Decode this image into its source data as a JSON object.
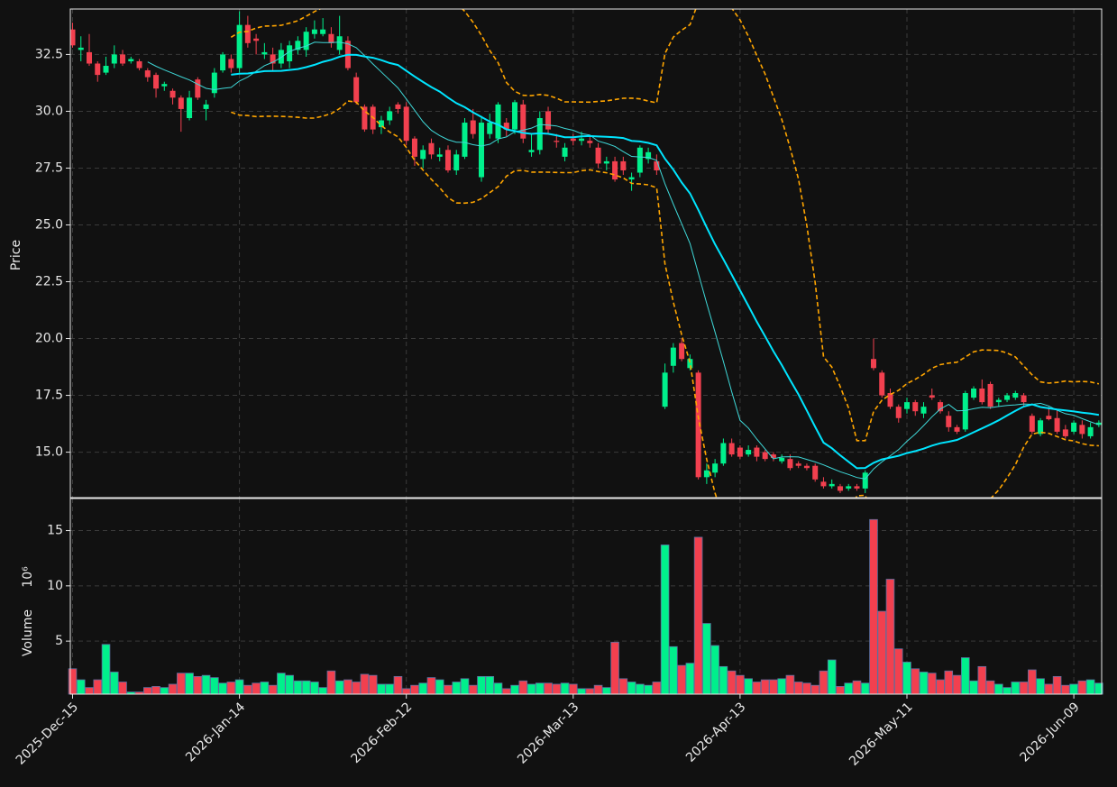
{
  "chart_data": {
    "type": "candlestick",
    "categories": [
      "2025-Dec-15",
      null,
      null,
      null,
      null,
      null,
      null,
      null,
      null,
      null,
      null,
      null,
      null,
      null,
      null,
      null,
      null,
      null,
      null,
      null,
      "2026-Jan-14",
      null,
      null,
      null,
      null,
      null,
      null,
      null,
      null,
      null,
      null,
      null,
      null,
      null,
      null,
      null,
      null,
      null,
      null,
      null,
      "2026-Feb-12",
      null,
      null,
      null,
      null,
      null,
      null,
      null,
      null,
      null,
      null,
      null,
      null,
      null,
      null,
      null,
      null,
      null,
      null,
      null,
      "2026-Mar-13",
      null,
      null,
      null,
      null,
      null,
      null,
      null,
      null,
      null,
      null,
      null,
      null,
      null,
      null,
      null,
      null,
      null,
      null,
      null,
      "2026-Apr-13",
      null,
      null,
      null,
      null,
      null,
      null,
      null,
      null,
      null,
      null,
      null,
      null,
      null,
      null,
      null,
      null,
      null,
      null,
      null,
      "2026-May-11",
      null,
      null,
      null,
      null,
      null,
      null,
      null,
      null,
      null,
      null,
      null,
      null,
      null,
      null,
      null,
      null,
      null,
      null,
      null,
      "2026-Jun-09",
      null,
      null,
      null
    ],
    "open": [
      33.6,
      32.7,
      32.6,
      32.1,
      31.7,
      32.1,
      32.5,
      32.2,
      32.2,
      31.8,
      31.6,
      31.1,
      30.9,
      30.6,
      29.7,
      31.4,
      30.1,
      30.8,
      31.8,
      32.3,
      31.9,
      33.8,
      33.2,
      32.5,
      32.5,
      32.1,
      32.2,
      32.7,
      32.7,
      33.4,
      33.4,
      33.4,
      32.7,
      33.1,
      31.5,
      30.2,
      30.2,
      29.3,
      29.6,
      30.3,
      30.2,
      28.8,
      27.9,
      28.6,
      28.0,
      28.3,
      27.4,
      28.0,
      29.6,
      27.1,
      29.0,
      28.8,
      29.5,
      29.2,
      30.3,
      28.2,
      28.3,
      30.0,
      28.7,
      28.0,
      28.8,
      28.7,
      28.7,
      28.4,
      27.7,
      27.8,
      27.8,
      27.0,
      27.3,
      27.9,
      27.8,
      17.0,
      18.8,
      19.8,
      18.7,
      18.5,
      13.9,
      14.1,
      14.5,
      15.4,
      15.2,
      14.9,
      15.2,
      15.0,
      14.9,
      14.6,
      14.7,
      14.5,
      14.4,
      14.4,
      13.7,
      13.5,
      13.5,
      13.4,
      13.5,
      13.4,
      19.1,
      18.5,
      17.6,
      17.0,
      16.9,
      17.2,
      16.7,
      17.5,
      17.2,
      16.6,
      16.1,
      16.0,
      17.4,
      17.8,
      18.0,
      17.2,
      17.3,
      17.4,
      17.5,
      16.6,
      15.8,
      16.6,
      16.5,
      16.0,
      15.9,
      16.2,
      15.7,
      16.2
    ],
    "high": [
      33.9,
      33.3,
      33.4,
      32.2,
      32.4,
      32.9,
      32.7,
      32.4,
      32.3,
      31.9,
      31.7,
      31.3,
      31.0,
      30.7,
      30.9,
      31.5,
      30.5,
      31.9,
      32.6,
      32.5,
      34.4,
      34.2,
      33.4,
      33.0,
      32.8,
      33.0,
      33.1,
      33.3,
      33.7,
      34.0,
      34.1,
      33.7,
      34.2,
      33.3,
      31.7,
      30.3,
      30.3,
      29.8,
      30.2,
      30.4,
      30.4,
      28.9,
      28.5,
      28.8,
      28.4,
      28.5,
      28.3,
      29.7,
      30.1,
      29.8,
      29.9,
      30.4,
      29.7,
      30.5,
      30.5,
      29.0,
      30.0,
      30.2,
      29.0,
      28.6,
      29.0,
      29.1,
      28.9,
      28.6,
      28.0,
      28.0,
      28.0,
      27.3,
      28.5,
      28.4,
      28.1,
      18.9,
      19.8,
      20.0,
      19.3,
      18.6,
      14.5,
      14.7,
      15.6,
      15.6,
      15.3,
      15.3,
      15.3,
      15.1,
      15.0,
      14.9,
      14.9,
      14.6,
      14.5,
      14.5,
      13.9,
      13.8,
      13.6,
      13.6,
      13.6,
      14.2,
      20.0,
      18.6,
      17.8,
      17.1,
      17.4,
      17.3,
      17.2,
      17.8,
      17.3,
      16.8,
      16.2,
      17.7,
      17.9,
      18.2,
      18.1,
      17.4,
      17.6,
      17.7,
      17.6,
      16.7,
      16.5,
      17.0,
      16.9,
      16.2,
      16.4,
      16.4,
      16.3,
      16.4
    ],
    "low": [
      32.8,
      32.2,
      32.0,
      31.3,
      31.6,
      31.9,
      32.0,
      32.1,
      31.8,
      31.3,
      30.6,
      30.9,
      30.3,
      29.1,
      29.6,
      30.5,
      29.6,
      30.6,
      31.7,
      31.7,
      31.7,
      32.8,
      32.5,
      32.3,
      31.8,
      31.9,
      31.9,
      32.5,
      32.4,
      33.2,
      33.3,
      32.8,
      32.5,
      31.8,
      30.3,
      29.1,
      29.0,
      29.0,
      29.4,
      29.9,
      28.5,
      27.6,
      27.5,
      27.9,
      27.8,
      27.3,
      27.2,
      27.9,
      28.8,
      26.9,
      28.8,
      28.6,
      28.9,
      29.0,
      28.6,
      28.0,
      28.1,
      29.0,
      28.4,
      27.8,
      28.5,
      28.5,
      28.4,
      27.5,
      27.4,
      26.9,
      27.2,
      26.5,
      27.1,
      27.7,
      27.2,
      16.9,
      18.5,
      19.0,
      18.6,
      13.8,
      13.6,
      13.9,
      14.4,
      14.8,
      14.7,
      14.8,
      14.6,
      14.6,
      14.6,
      14.5,
      14.2,
      14.3,
      14.2,
      13.7,
      13.4,
      13.4,
      13.2,
      13.3,
      13.3,
      13.2,
      18.6,
      17.4,
      16.9,
      16.3,
      16.7,
      16.6,
      16.5,
      17.3,
      16.7,
      15.9,
      15.8,
      15.9,
      17.3,
      17.1,
      16.9,
      17.0,
      17.2,
      17.3,
      17.0,
      15.8,
      15.7,
      16.4,
      15.8,
      15.6,
      15.8,
      15.6,
      15.6,
      16.1
    ],
    "close": [
      32.9,
      32.8,
      32.1,
      31.6,
      32.0,
      32.5,
      32.1,
      32.3,
      31.9,
      31.5,
      31.0,
      31.2,
      30.6,
      30.1,
      30.6,
      30.6,
      30.3,
      31.7,
      32.5,
      31.9,
      33.8,
      33.0,
      33.1,
      32.6,
      32.1,
      32.7,
      32.9,
      33.1,
      33.5,
      33.6,
      33.6,
      33.0,
      33.3,
      31.9,
      30.4,
      29.2,
      29.2,
      29.6,
      30.0,
      30.1,
      28.7,
      28.0,
      28.3,
      28.1,
      28.1,
      27.4,
      28.1,
      29.5,
      29.0,
      29.5,
      29.5,
      30.3,
      29.2,
      30.4,
      28.8,
      28.3,
      29.7,
      29.2,
      28.65,
      28.4,
      28.7,
      28.8,
      28.6,
      27.7,
      27.8,
      27.0,
      27.4,
      27.1,
      28.4,
      28.2,
      27.4,
      18.5,
      19.6,
      19.1,
      19.1,
      13.9,
      14.2,
      14.5,
      15.4,
      14.9,
      14.8,
      15.1,
      14.8,
      14.7,
      14.75,
      14.75,
      14.3,
      14.4,
      14.3,
      13.8,
      13.5,
      13.6,
      13.3,
      13.5,
      13.4,
      14.1,
      18.7,
      17.5,
      17.0,
      16.5,
      17.2,
      16.8,
      17.0,
      17.4,
      16.8,
      16.1,
      15.9,
      17.6,
      17.8,
      17.2,
      17.0,
      17.3,
      17.5,
      17.6,
      17.2,
      15.9,
      16.4,
      16.45,
      15.9,
      15.7,
      16.3,
      15.8,
      16.1,
      16.3
    ],
    "volume": [
      2.5,
      1.5,
      0.8,
      1.5,
      4.7,
      2.2,
      1.3,
      0.4,
      0.4,
      0.8,
      0.9,
      0.8,
      1.1,
      2.1,
      2.1,
      1.8,
      1.9,
      1.7,
      1.2,
      1.3,
      1.5,
      1.0,
      1.2,
      1.3,
      1.0,
      2.1,
      1.9,
      1.4,
      1.4,
      1.3,
      0.8,
      2.3,
      1.4,
      1.5,
      1.3,
      2.0,
      1.9,
      1.1,
      1.1,
      1.8,
      0.7,
      1.0,
      1.2,
      1.7,
      1.5,
      1.0,
      1.3,
      1.6,
      1.0,
      1.8,
      1.8,
      1.2,
      0.7,
      1.0,
      1.4,
      1.1,
      1.2,
      1.2,
      1.1,
      1.2,
      1.1,
      0.7,
      0.7,
      1.0,
      0.8,
      4.9,
      1.6,
      1.3,
      1.1,
      1.0,
      1.3,
      13.7,
      4.5,
      2.8,
      3.0,
      14.4,
      6.6,
      4.6,
      2.7,
      2.3,
      1.9,
      1.6,
      1.3,
      1.5,
      1.5,
      1.6,
      1.9,
      1.3,
      1.2,
      1.0,
      2.3,
      3.3,
      0.9,
      1.2,
      1.4,
      1.2,
      16.0,
      7.7,
      10.6,
      4.3,
      3.1,
      2.5,
      2.2,
      2.1,
      1.5,
      2.3,
      1.9,
      3.5,
      1.4,
      2.7,
      1.4,
      1.1,
      0.8,
      1.3,
      1.3,
      2.4,
      1.6,
      1.1,
      1.8,
      1.0,
      1.1,
      1.4,
      1.5,
      1.2
    ],
    "ylabel": "Price",
    "ylim": [
      13.0,
      34.5
    ],
    "yticks": [
      {
        "value": 15,
        "label": "15.0"
      },
      {
        "value": 17.5,
        "label": "17.5"
      },
      {
        "value": 20,
        "label": "20.0"
      },
      {
        "value": 22.5,
        "label": "22.5"
      },
      {
        "value": 25,
        "label": "25.0"
      },
      {
        "value": 27.5,
        "label": "27.5"
      },
      {
        "value": 30,
        "label": "30.0"
      },
      {
        "value": 32.5,
        "label": "32.5"
      }
    ],
    "volume_ylabel": "Volume",
    "volume_offset": "10⁶",
    "volume_ylim": [
      0.2,
      17.9
    ],
    "volume_yticks": [
      5,
      10,
      15
    ],
    "up_color": "#00f08c",
    "down_color": "#f2404f",
    "moving_averages": [
      10,
      20
    ],
    "ma_colors": [
      "#3fd8d8",
      "#00e5ff"
    ],
    "bollinger": {
      "period": 20,
      "std": 2,
      "color": "#ffa500"
    },
    "grid": true
  }
}
